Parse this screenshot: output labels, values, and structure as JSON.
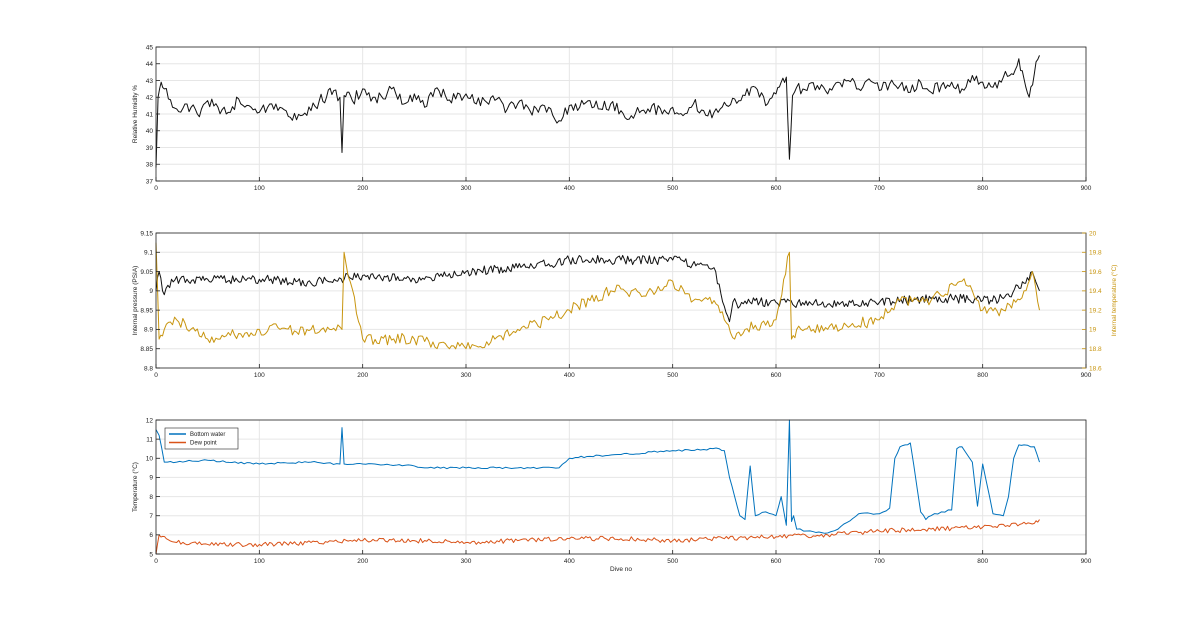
{
  "colors": {
    "black": "#111111",
    "blue": "#0072BD",
    "orange": "#D95319",
    "gold": "#C8950F",
    "grid": "#e6e6e6",
    "axis": "#222222"
  },
  "chart_data": [
    {
      "type": "line",
      "xlabel": "",
      "ylabel": "Relative Humidity %",
      "xlim": [
        0,
        900
      ],
      "ylim": [
        37,
        45
      ],
      "x_ticks": [
        0,
        100,
        200,
        300,
        400,
        500,
        600,
        700,
        800,
        900
      ],
      "y_ticks": [
        37,
        38,
        39,
        40,
        41,
        42,
        43,
        44,
        45
      ],
      "grid": true,
      "series": [
        {
          "color": "#111111",
          "x": [
            0,
            2,
            5,
            8,
            12,
            20,
            30,
            40,
            50,
            60,
            70,
            80,
            90,
            100,
            110,
            120,
            130,
            140,
            150,
            158,
            165,
            172,
            178,
            180,
            182,
            185,
            190,
            200,
            210,
            220,
            230,
            240,
            250,
            260,
            270,
            280,
            290,
            300,
            310,
            320,
            330,
            340,
            350,
            360,
            370,
            380,
            390,
            400,
            410,
            420,
            430,
            440,
            450,
            460,
            470,
            480,
            490,
            500,
            510,
            520,
            530,
            540,
            550,
            560,
            570,
            580,
            590,
            600,
            605,
            610,
            613,
            616,
            620,
            630,
            640,
            650,
            660,
            670,
            680,
            690,
            700,
            710,
            720,
            730,
            740,
            750,
            760,
            770,
            780,
            790,
            800,
            810,
            820,
            828,
            835,
            840,
            845,
            850,
            855
          ],
          "y": [
            37.8,
            42.0,
            42.9,
            42.5,
            41.9,
            41.3,
            41.6,
            41.0,
            41.8,
            41.4,
            41.1,
            41.9,
            41.5,
            41.1,
            41.6,
            41.4,
            40.8,
            40.9,
            41.2,
            41.8,
            42.0,
            42.4,
            42.0,
            38.7,
            42.1,
            42.3,
            41.8,
            42.5,
            42.0,
            41.9,
            42.6,
            41.6,
            42.2,
            41.4,
            42.5,
            42.1,
            41.9,
            42.2,
            41.6,
            41.7,
            41.9,
            41.3,
            41.6,
            41.4,
            41.1,
            41.4,
            40.6,
            41.5,
            41.4,
            41.8,
            41.3,
            41.6,
            41.2,
            40.9,
            41.2,
            41.5,
            41.0,
            41.4,
            40.9,
            41.6,
            41.2,
            41.1,
            41.7,
            41.9,
            42.1,
            42.6,
            41.5,
            42.2,
            42.9,
            43.2,
            38.3,
            42.1,
            42.6,
            42.4,
            42.7,
            42.2,
            42.9,
            43.0,
            42.5,
            43.1,
            42.4,
            42.8,
            42.7,
            42.3,
            42.9,
            42.3,
            42.7,
            42.9,
            42.5,
            43.3,
            42.9,
            42.6,
            43.2,
            43.4,
            44.3,
            43.1,
            42.0,
            43.4,
            44.5
          ]
        }
      ]
    },
    {
      "type": "line",
      "xlabel": "",
      "ylabel": "Internal pressure (PSIA)",
      "ylabel_right": "Internal temperature (°C)",
      "xlim": [
        0,
        900
      ],
      "ylim": [
        8.8,
        9.15
      ],
      "ylim_right": [
        18.6,
        20
      ],
      "x_ticks": [
        0,
        100,
        200,
        300,
        400,
        500,
        600,
        700,
        800,
        900
      ],
      "y_ticks": [
        8.8,
        8.85,
        8.9,
        8.95,
        9,
        9.05,
        9.1,
        9.15
      ],
      "y_ticks_right": [
        18.6,
        18.8,
        19,
        19.2,
        19.4,
        19.6,
        19.8,
        20
      ],
      "grid": true,
      "series": [
        {
          "axis": "left",
          "color": "#111111",
          "x": [
            0,
            3,
            8,
            15,
            30,
            50,
            100,
            150,
            200,
            250,
            300,
            350,
            380,
            400,
            450,
            500,
            540,
            555,
            560,
            565,
            575,
            600,
            650,
            700,
            750,
            780,
            800,
            820,
            840,
            848,
            855
          ],
          "y": [
            9.0,
            9.05,
            8.99,
            9.03,
            9.03,
            9.03,
            9.03,
            9.02,
            9.04,
            9.03,
            9.05,
            9.06,
            9.07,
            9.08,
            9.08,
            9.08,
            9.06,
            8.92,
            8.98,
            8.96,
            8.97,
            8.97,
            8.965,
            8.97,
            8.98,
            8.98,
            8.975,
            8.98,
            9.02,
            9.05,
            9.0
          ]
        },
        {
          "axis": "right",
          "color": "#C8950F",
          "x": [
            0,
            3,
            8,
            20,
            50,
            100,
            150,
            180,
            182,
            200,
            250,
            300,
            350,
            380,
            400,
            420,
            440,
            460,
            480,
            500,
            520,
            540,
            550,
            560,
            570,
            600,
            613,
            615,
            620,
            650,
            700,
            720,
            750,
            780,
            790,
            800,
            820,
            840,
            848,
            855
          ],
          "y": [
            19.9,
            18.9,
            19.0,
            19.1,
            18.9,
            19.0,
            19.0,
            19.0,
            19.8,
            18.9,
            18.9,
            18.8,
            19.0,
            19.1,
            19.2,
            19.3,
            19.4,
            19.4,
            19.4,
            19.5,
            19.3,
            19.3,
            19.1,
            18.9,
            19.0,
            19.1,
            19.8,
            18.9,
            19.0,
            19.0,
            19.1,
            19.3,
            19.3,
            19.5,
            19.4,
            19.2,
            19.2,
            19.4,
            19.6,
            19.2
          ]
        }
      ]
    },
    {
      "type": "line",
      "xlabel": "Dive no",
      "ylabel": "Temperature (°C)",
      "xlim": [
        0,
        900
      ],
      "ylim": [
        5,
        12
      ],
      "x_ticks": [
        0,
        100,
        200,
        300,
        400,
        500,
        600,
        700,
        800,
        900
      ],
      "y_ticks": [
        5,
        6,
        7,
        8,
        9,
        10,
        11,
        12
      ],
      "grid": true,
      "legend_position": "top-left",
      "series": [
        {
          "name": "Bottom water",
          "color": "#0072BD",
          "x": [
            0,
            3,
            8,
            20,
            50,
            100,
            150,
            178,
            180,
            182,
            200,
            250,
            260,
            300,
            350,
            390,
            400,
            420,
            450,
            500,
            545,
            550,
            555,
            560,
            565,
            570,
            575,
            580,
            590,
            600,
            605,
            610,
            613,
            615,
            617,
            620,
            630,
            650,
            660,
            680,
            700,
            710,
            715,
            720,
            725,
            730,
            740,
            745,
            750,
            760,
            770,
            775,
            780,
            790,
            795,
            800,
            810,
            820,
            825,
            830,
            835,
            840,
            850,
            855
          ],
          "y": [
            11.5,
            11.2,
            9.8,
            9.8,
            9.9,
            9.7,
            9.8,
            9.7,
            11.6,
            9.7,
            9.7,
            9.6,
            9.5,
            9.5,
            9.5,
            9.5,
            10.0,
            10.1,
            10.2,
            10.4,
            10.5,
            10.4,
            9.0,
            8.0,
            7.0,
            6.8,
            9.6,
            7.0,
            7.2,
            7.0,
            8.0,
            6.5,
            12.0,
            6.7,
            7.0,
            6.3,
            6.2,
            6.1,
            6.3,
            7.1,
            7.1,
            7.4,
            10.0,
            10.6,
            10.7,
            10.8,
            7.2,
            6.8,
            7.0,
            7.2,
            7.3,
            10.5,
            10.6,
            9.8,
            7.5,
            9.7,
            7.1,
            7.0,
            8.0,
            10.0,
            10.7,
            10.7,
            10.6,
            9.8
          ]
        },
        {
          "name": "Dew point",
          "color": "#D95319",
          "x": [
            0,
            3,
            10,
            20,
            50,
            100,
            150,
            200,
            250,
            300,
            350,
            400,
            450,
            500,
            550,
            600,
            650,
            700,
            750,
            800,
            850,
            855
          ],
          "y": [
            5.0,
            6.0,
            5.8,
            5.6,
            5.5,
            5.5,
            5.6,
            5.7,
            5.7,
            5.6,
            5.7,
            5.8,
            5.8,
            5.7,
            5.8,
            5.9,
            6.0,
            6.2,
            6.3,
            6.4,
            6.6,
            6.8
          ]
        }
      ]
    }
  ]
}
